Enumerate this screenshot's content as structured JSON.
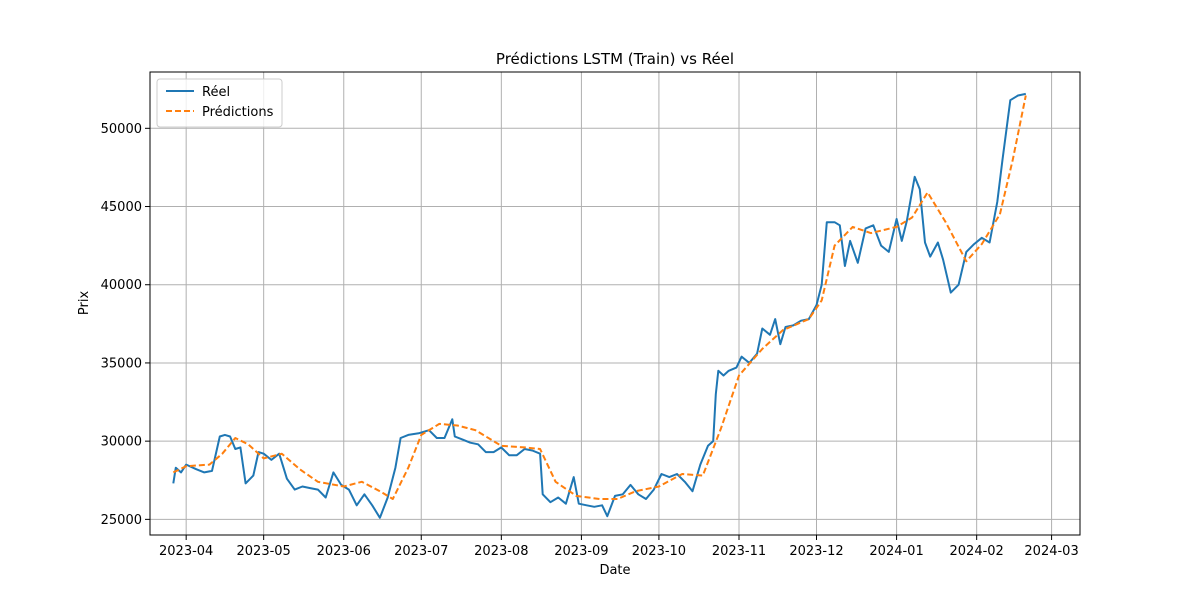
{
  "chart_data": {
    "type": "line",
    "title": "Prédictions LSTM (Train) vs Réel",
    "xlabel": "Date",
    "ylabel": "Prix",
    "x_range": [
      "2023-03-18",
      "2024-03-12"
    ],
    "ylim": [
      24000,
      53600
    ],
    "x_ticks": [
      "2023-04",
      "2023-05",
      "2023-06",
      "2023-07",
      "2023-08",
      "2023-09",
      "2023-10",
      "2023-11",
      "2023-12",
      "2024-01",
      "2024-02",
      "2024-03"
    ],
    "y_ticks": [
      25000,
      30000,
      35000,
      40000,
      45000,
      50000
    ],
    "grid": true,
    "legend_position": "top-left",
    "series": [
      {
        "name": "Réel",
        "color": "#1f77b4",
        "style": "solid",
        "points": [
          [
            "2023-03-27",
            27300
          ],
          [
            "2023-03-28",
            28300
          ],
          [
            "2023-03-30",
            28000
          ],
          [
            "2023-04-01",
            28500
          ],
          [
            "2023-04-05",
            28200
          ],
          [
            "2023-04-08",
            28000
          ],
          [
            "2023-04-11",
            28100
          ],
          [
            "2023-04-14",
            30300
          ],
          [
            "2023-04-16",
            30400
          ],
          [
            "2023-04-18",
            30300
          ],
          [
            "2023-04-20",
            29500
          ],
          [
            "2023-04-22",
            29600
          ],
          [
            "2023-04-24",
            27300
          ],
          [
            "2023-04-27",
            27800
          ],
          [
            "2023-04-29",
            29300
          ],
          [
            "2023-05-01",
            29200
          ],
          [
            "2023-05-04",
            28800
          ],
          [
            "2023-05-07",
            29200
          ],
          [
            "2023-05-10",
            27600
          ],
          [
            "2023-05-13",
            26900
          ],
          [
            "2023-05-16",
            27100
          ],
          [
            "2023-05-19",
            27000
          ],
          [
            "2023-05-22",
            26900
          ],
          [
            "2023-05-25",
            26400
          ],
          [
            "2023-05-28",
            28000
          ],
          [
            "2023-05-31",
            27200
          ],
          [
            "2023-06-03",
            26900
          ],
          [
            "2023-06-06",
            25900
          ],
          [
            "2023-06-09",
            26600
          ],
          [
            "2023-06-12",
            25900
          ],
          [
            "2023-06-15",
            25100
          ],
          [
            "2023-06-18",
            26400
          ],
          [
            "2023-06-21",
            28300
          ],
          [
            "2023-06-23",
            30200
          ],
          [
            "2023-06-26",
            30400
          ],
          [
            "2023-06-30",
            30500
          ],
          [
            "2023-07-04",
            30700
          ],
          [
            "2023-07-07",
            30200
          ],
          [
            "2023-07-10",
            30200
          ],
          [
            "2023-07-13",
            31400
          ],
          [
            "2023-07-14",
            30300
          ],
          [
            "2023-07-17",
            30100
          ],
          [
            "2023-07-20",
            29900
          ],
          [
            "2023-07-23",
            29800
          ],
          [
            "2023-07-26",
            29300
          ],
          [
            "2023-07-29",
            29300
          ],
          [
            "2023-08-01",
            29600
          ],
          [
            "2023-08-04",
            29100
          ],
          [
            "2023-08-07",
            29100
          ],
          [
            "2023-08-10",
            29500
          ],
          [
            "2023-08-13",
            29400
          ],
          [
            "2023-08-16",
            29200
          ],
          [
            "2023-08-17",
            26600
          ],
          [
            "2023-08-20",
            26100
          ],
          [
            "2023-08-23",
            26400
          ],
          [
            "2023-08-26",
            26000
          ],
          [
            "2023-08-29",
            27700
          ],
          [
            "2023-08-31",
            26000
          ],
          [
            "2023-09-03",
            25900
          ],
          [
            "2023-09-06",
            25800
          ],
          [
            "2023-09-09",
            25900
          ],
          [
            "2023-09-11",
            25200
          ],
          [
            "2023-09-14",
            26500
          ],
          [
            "2023-09-17",
            26600
          ],
          [
            "2023-09-20",
            27200
          ],
          [
            "2023-09-23",
            26600
          ],
          [
            "2023-09-26",
            26300
          ],
          [
            "2023-09-29",
            26900
          ],
          [
            "2023-10-02",
            27900
          ],
          [
            "2023-10-05",
            27700
          ],
          [
            "2023-10-08",
            27900
          ],
          [
            "2023-10-11",
            27400
          ],
          [
            "2023-10-14",
            26800
          ],
          [
            "2023-10-17",
            28500
          ],
          [
            "2023-10-20",
            29700
          ],
          [
            "2023-10-22",
            30000
          ],
          [
            "2023-10-23",
            33000
          ],
          [
            "2023-10-24",
            34500
          ],
          [
            "2023-10-26",
            34200
          ],
          [
            "2023-10-28",
            34500
          ],
          [
            "2023-10-31",
            34700
          ],
          [
            "2023-11-02",
            35400
          ],
          [
            "2023-11-05",
            35000
          ],
          [
            "2023-11-08",
            35600
          ],
          [
            "2023-11-10",
            37200
          ],
          [
            "2023-11-13",
            36800
          ],
          [
            "2023-11-15",
            37800
          ],
          [
            "2023-11-17",
            36200
          ],
          [
            "2023-11-19",
            37300
          ],
          [
            "2023-11-22",
            37400
          ],
          [
            "2023-11-25",
            37700
          ],
          [
            "2023-11-28",
            37800
          ],
          [
            "2023-12-01",
            38700
          ],
          [
            "2023-12-03",
            40000
          ],
          [
            "2023-12-05",
            44000
          ],
          [
            "2023-12-08",
            44000
          ],
          [
            "2023-12-10",
            43800
          ],
          [
            "2023-12-12",
            41200
          ],
          [
            "2023-12-14",
            42800
          ],
          [
            "2023-12-17",
            41400
          ],
          [
            "2023-12-20",
            43600
          ],
          [
            "2023-12-23",
            43800
          ],
          [
            "2023-12-26",
            42500
          ],
          [
            "2023-12-29",
            42100
          ],
          [
            "2024-01-01",
            44200
          ],
          [
            "2024-01-03",
            42800
          ],
          [
            "2024-01-05",
            44100
          ],
          [
            "2024-01-08",
            46900
          ],
          [
            "2024-01-10",
            46100
          ],
          [
            "2024-01-12",
            42700
          ],
          [
            "2024-01-14",
            41800
          ],
          [
            "2024-01-17",
            42700
          ],
          [
            "2024-01-19",
            41600
          ],
          [
            "2024-01-22",
            39500
          ],
          [
            "2024-01-25",
            40000
          ],
          [
            "2024-01-28",
            42100
          ],
          [
            "2024-01-31",
            42600
          ],
          [
            "2024-02-03",
            43000
          ],
          [
            "2024-02-06",
            42700
          ],
          [
            "2024-02-09",
            45300
          ],
          [
            "2024-02-11",
            48000
          ],
          [
            "2024-02-14",
            51800
          ],
          [
            "2024-02-17",
            52100
          ],
          [
            "2024-02-20",
            52200
          ]
        ]
      },
      {
        "name": "Prédictions",
        "color": "#ff7f0e",
        "style": "dashed",
        "points": [
          [
            "2023-03-27",
            28000
          ],
          [
            "2023-04-01",
            28400
          ],
          [
            "2023-04-10",
            28500
          ],
          [
            "2023-04-15",
            29200
          ],
          [
            "2023-04-20",
            30200
          ],
          [
            "2023-04-25",
            29800
          ],
          [
            "2023-05-01",
            28900
          ],
          [
            "2023-05-08",
            29200
          ],
          [
            "2023-05-15",
            28200
          ],
          [
            "2023-05-22",
            27400
          ],
          [
            "2023-06-01",
            27100
          ],
          [
            "2023-06-08",
            27400
          ],
          [
            "2023-06-15",
            26800
          ],
          [
            "2023-06-20",
            26300
          ],
          [
            "2023-06-26",
            28300
          ],
          [
            "2023-07-01",
            30400
          ],
          [
            "2023-07-08",
            31100
          ],
          [
            "2023-07-15",
            31000
          ],
          [
            "2023-07-22",
            30700
          ],
          [
            "2023-08-01",
            29700
          ],
          [
            "2023-08-10",
            29600
          ],
          [
            "2023-08-16",
            29500
          ],
          [
            "2023-08-22",
            27400
          ],
          [
            "2023-08-30",
            26500
          ],
          [
            "2023-09-08",
            26300
          ],
          [
            "2023-09-15",
            26300
          ],
          [
            "2023-09-22",
            26800
          ],
          [
            "2023-10-01",
            27100
          ],
          [
            "2023-10-10",
            27900
          ],
          [
            "2023-10-18",
            27800
          ],
          [
            "2023-10-25",
            30800
          ],
          [
            "2023-11-01",
            34200
          ],
          [
            "2023-11-10",
            35900
          ],
          [
            "2023-11-18",
            37100
          ],
          [
            "2023-11-28",
            37800
          ],
          [
            "2023-12-03",
            39000
          ],
          [
            "2023-12-08",
            42500
          ],
          [
            "2023-12-15",
            43700
          ],
          [
            "2023-12-22",
            43300
          ],
          [
            "2024-01-01",
            43700
          ],
          [
            "2024-01-07",
            44300
          ],
          [
            "2024-01-13",
            45900
          ],
          [
            "2024-01-20",
            44000
          ],
          [
            "2024-01-28",
            41500
          ],
          [
            "2024-02-03",
            42600
          ],
          [
            "2024-02-10",
            44500
          ],
          [
            "2024-02-15",
            48000
          ],
          [
            "2024-02-20",
            52100
          ]
        ]
      }
    ]
  }
}
